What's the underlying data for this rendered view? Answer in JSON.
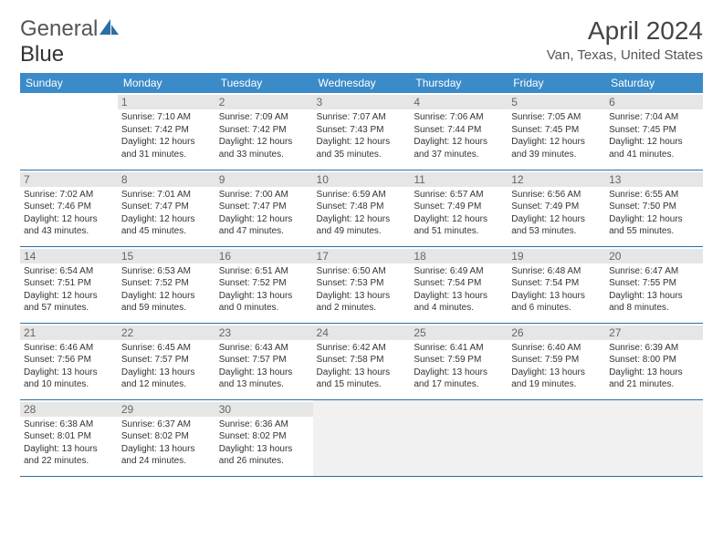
{
  "logo": {
    "part1": "General",
    "part2": "Blue"
  },
  "title": "April 2024",
  "location": "Van, Texas, United States",
  "colors": {
    "header_bg": "#3b8bc9",
    "header_text": "#ffffff",
    "cell_border": "#2a6fa5",
    "daynum_bg": "#e6e6e6",
    "daynum_text": "#666666",
    "body_text": "#333333",
    "logo_blue": "#2a6fa5"
  },
  "fonts": {
    "title_size": 28,
    "location_size": 15,
    "header_size": 12,
    "daynum_size": 12,
    "data_size": 10
  },
  "weekdays": [
    "Sunday",
    "Monday",
    "Tuesday",
    "Wednesday",
    "Thursday",
    "Friday",
    "Saturday"
  ],
  "weeks": [
    [
      {
        "n": "",
        "sr": "",
        "ss": "",
        "dl": "",
        "empty": true
      },
      {
        "n": "1",
        "sr": "Sunrise: 7:10 AM",
        "ss": "Sunset: 7:42 PM",
        "dl": "Daylight: 12 hours and 31 minutes."
      },
      {
        "n": "2",
        "sr": "Sunrise: 7:09 AM",
        "ss": "Sunset: 7:42 PM",
        "dl": "Daylight: 12 hours and 33 minutes."
      },
      {
        "n": "3",
        "sr": "Sunrise: 7:07 AM",
        "ss": "Sunset: 7:43 PM",
        "dl": "Daylight: 12 hours and 35 minutes."
      },
      {
        "n": "4",
        "sr": "Sunrise: 7:06 AM",
        "ss": "Sunset: 7:44 PM",
        "dl": "Daylight: 12 hours and 37 minutes."
      },
      {
        "n": "5",
        "sr": "Sunrise: 7:05 AM",
        "ss": "Sunset: 7:45 PM",
        "dl": "Daylight: 12 hours and 39 minutes."
      },
      {
        "n": "6",
        "sr": "Sunrise: 7:04 AM",
        "ss": "Sunset: 7:45 PM",
        "dl": "Daylight: 12 hours and 41 minutes."
      }
    ],
    [
      {
        "n": "7",
        "sr": "Sunrise: 7:02 AM",
        "ss": "Sunset: 7:46 PM",
        "dl": "Daylight: 12 hours and 43 minutes."
      },
      {
        "n": "8",
        "sr": "Sunrise: 7:01 AM",
        "ss": "Sunset: 7:47 PM",
        "dl": "Daylight: 12 hours and 45 minutes."
      },
      {
        "n": "9",
        "sr": "Sunrise: 7:00 AM",
        "ss": "Sunset: 7:47 PM",
        "dl": "Daylight: 12 hours and 47 minutes."
      },
      {
        "n": "10",
        "sr": "Sunrise: 6:59 AM",
        "ss": "Sunset: 7:48 PM",
        "dl": "Daylight: 12 hours and 49 minutes."
      },
      {
        "n": "11",
        "sr": "Sunrise: 6:57 AM",
        "ss": "Sunset: 7:49 PM",
        "dl": "Daylight: 12 hours and 51 minutes."
      },
      {
        "n": "12",
        "sr": "Sunrise: 6:56 AM",
        "ss": "Sunset: 7:49 PM",
        "dl": "Daylight: 12 hours and 53 minutes."
      },
      {
        "n": "13",
        "sr": "Sunrise: 6:55 AM",
        "ss": "Sunset: 7:50 PM",
        "dl": "Daylight: 12 hours and 55 minutes."
      }
    ],
    [
      {
        "n": "14",
        "sr": "Sunrise: 6:54 AM",
        "ss": "Sunset: 7:51 PM",
        "dl": "Daylight: 12 hours and 57 minutes."
      },
      {
        "n": "15",
        "sr": "Sunrise: 6:53 AM",
        "ss": "Sunset: 7:52 PM",
        "dl": "Daylight: 12 hours and 59 minutes."
      },
      {
        "n": "16",
        "sr": "Sunrise: 6:51 AM",
        "ss": "Sunset: 7:52 PM",
        "dl": "Daylight: 13 hours and 0 minutes."
      },
      {
        "n": "17",
        "sr": "Sunrise: 6:50 AM",
        "ss": "Sunset: 7:53 PM",
        "dl": "Daylight: 13 hours and 2 minutes."
      },
      {
        "n": "18",
        "sr": "Sunrise: 6:49 AM",
        "ss": "Sunset: 7:54 PM",
        "dl": "Daylight: 13 hours and 4 minutes."
      },
      {
        "n": "19",
        "sr": "Sunrise: 6:48 AM",
        "ss": "Sunset: 7:54 PM",
        "dl": "Daylight: 13 hours and 6 minutes."
      },
      {
        "n": "20",
        "sr": "Sunrise: 6:47 AM",
        "ss": "Sunset: 7:55 PM",
        "dl": "Daylight: 13 hours and 8 minutes."
      }
    ],
    [
      {
        "n": "21",
        "sr": "Sunrise: 6:46 AM",
        "ss": "Sunset: 7:56 PM",
        "dl": "Daylight: 13 hours and 10 minutes."
      },
      {
        "n": "22",
        "sr": "Sunrise: 6:45 AM",
        "ss": "Sunset: 7:57 PM",
        "dl": "Daylight: 13 hours and 12 minutes."
      },
      {
        "n": "23",
        "sr": "Sunrise: 6:43 AM",
        "ss": "Sunset: 7:57 PM",
        "dl": "Daylight: 13 hours and 13 minutes."
      },
      {
        "n": "24",
        "sr": "Sunrise: 6:42 AM",
        "ss": "Sunset: 7:58 PM",
        "dl": "Daylight: 13 hours and 15 minutes."
      },
      {
        "n": "25",
        "sr": "Sunrise: 6:41 AM",
        "ss": "Sunset: 7:59 PM",
        "dl": "Daylight: 13 hours and 17 minutes."
      },
      {
        "n": "26",
        "sr": "Sunrise: 6:40 AM",
        "ss": "Sunset: 7:59 PM",
        "dl": "Daylight: 13 hours and 19 minutes."
      },
      {
        "n": "27",
        "sr": "Sunrise: 6:39 AM",
        "ss": "Sunset: 8:00 PM",
        "dl": "Daylight: 13 hours and 21 minutes."
      }
    ],
    [
      {
        "n": "28",
        "sr": "Sunrise: 6:38 AM",
        "ss": "Sunset: 8:01 PM",
        "dl": "Daylight: 13 hours and 22 minutes."
      },
      {
        "n": "29",
        "sr": "Sunrise: 6:37 AM",
        "ss": "Sunset: 8:02 PM",
        "dl": "Daylight: 13 hours and 24 minutes."
      },
      {
        "n": "30",
        "sr": "Sunrise: 6:36 AM",
        "ss": "Sunset: 8:02 PM",
        "dl": "Daylight: 13 hours and 26 minutes."
      },
      {
        "n": "",
        "sr": "",
        "ss": "",
        "dl": "",
        "blank": true
      },
      {
        "n": "",
        "sr": "",
        "ss": "",
        "dl": "",
        "blank": true
      },
      {
        "n": "",
        "sr": "",
        "ss": "",
        "dl": "",
        "blank": true
      },
      {
        "n": "",
        "sr": "",
        "ss": "",
        "dl": "",
        "blank": true
      }
    ]
  ]
}
